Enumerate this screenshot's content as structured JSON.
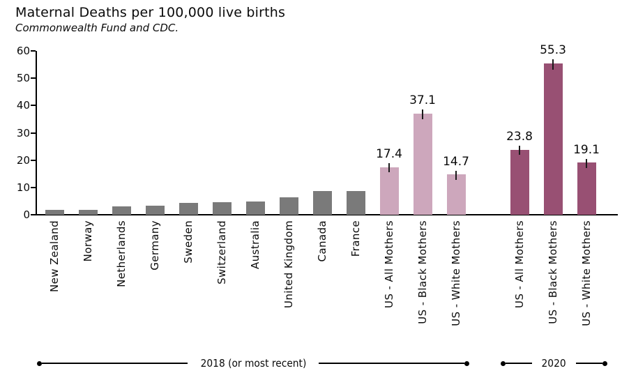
{
  "colors": {
    "oecd": "#7a7a7a",
    "us_2018": "#cda7bc",
    "us_2020": "#985073",
    "axis": "#000000"
  },
  "chart_data": {
    "type": "bar",
    "title": "Maternal Deaths per 100,000 live births",
    "subtitle": "Commonwealth Fund and CDC.",
    "xlabel": "",
    "ylabel": "",
    "ylim": [
      0,
      60
    ],
    "yticks": [
      0,
      10,
      20,
      30,
      40,
      50,
      60
    ],
    "grid": false,
    "legend": "none",
    "bars": [
      {
        "label": "New Zealand",
        "value": 1.7,
        "series": "oecd",
        "show_label": false
      },
      {
        "label": "Norway",
        "value": 1.8,
        "series": "oecd",
        "show_label": false
      },
      {
        "label": "Netherlands",
        "value": 3.0,
        "series": "oecd",
        "show_label": false
      },
      {
        "label": "Germany",
        "value": 3.2,
        "series": "oecd",
        "show_label": false
      },
      {
        "label": "Sweden",
        "value": 4.3,
        "series": "oecd",
        "show_label": false
      },
      {
        "label": "Switzerland",
        "value": 4.6,
        "series": "oecd",
        "show_label": false
      },
      {
        "label": "Australia",
        "value": 4.8,
        "series": "oecd",
        "show_label": false
      },
      {
        "label": "United Kingdom",
        "value": 6.5,
        "series": "oecd",
        "show_label": false
      },
      {
        "label": "Canada",
        "value": 8.6,
        "series": "oecd",
        "show_label": false
      },
      {
        "label": "France",
        "value": 8.7,
        "series": "oecd",
        "show_label": false
      },
      {
        "label": "US - All Mothers",
        "value": 17.4,
        "series": "us_2018",
        "show_label": true,
        "value_label": "17.4",
        "err": 1.8
      },
      {
        "label": "US - Black Mothers",
        "value": 37.1,
        "series": "us_2018",
        "show_label": true,
        "value_label": "37.1",
        "err": 2.0
      },
      {
        "label": "US - White Mothers",
        "value": 14.7,
        "series": "us_2018",
        "show_label": true,
        "value_label": "14.7",
        "err": 1.8
      },
      {
        "label": "US - All Mothers",
        "value": 23.8,
        "series": "us_2020",
        "show_label": true,
        "value_label": "23.8",
        "err": 1.8
      },
      {
        "label": "US - Black Mothers",
        "value": 55.3,
        "series": "us_2020",
        "show_label": true,
        "value_label": "55.3",
        "err": 2.0
      },
      {
        "label": "US - White Mothers",
        "value": 19.1,
        "series": "us_2020",
        "show_label": true,
        "value_label": "19.1",
        "err": 1.8
      }
    ],
    "groups": [
      {
        "label": "2018 (or most recent)",
        "from": 0,
        "to": 12
      },
      {
        "label": "2020",
        "from": 13,
        "to": 15
      }
    ]
  }
}
